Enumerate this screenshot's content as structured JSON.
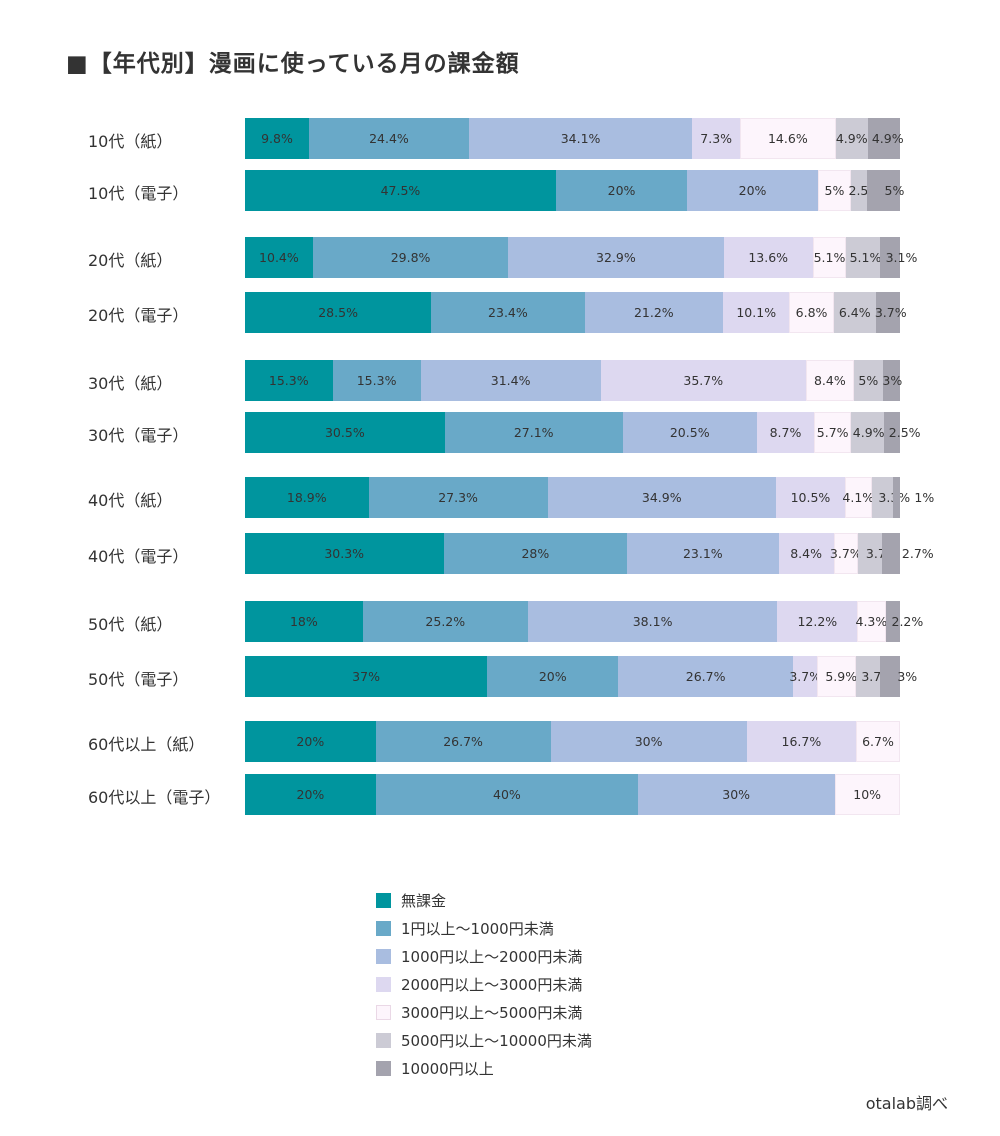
{
  "title": "■【年代別】漫画に使っている月の課金額",
  "source": "otalab調べ",
  "chart_data": {
    "type": "bar",
    "orientation": "horizontal-stacked-100",
    "title": "■【年代別】漫画に使っている月の課金額",
    "legend_position": "bottom",
    "categories": [
      "10代（紙）",
      "10代（電子）",
      "20代（紙）",
      "20代（電子）",
      "30代（紙）",
      "30代（電子）",
      "40代（紙）",
      "40代（電子）",
      "50代（紙）",
      "50代（電子）",
      "60代以上（紙）",
      "60代以上（電子）"
    ],
    "series": [
      {
        "name": "無課金",
        "color": "#00959e",
        "values": [
          9.8,
          47.5,
          10.4,
          28.5,
          15.3,
          30.5,
          18.9,
          30.3,
          18,
          37,
          20,
          20
        ]
      },
      {
        "name": "1円以上〜1000円未満",
        "color": "#69a9c8",
        "values": [
          24.4,
          20,
          29.8,
          23.4,
          15.3,
          27.1,
          27.3,
          28,
          25.2,
          20,
          26.7,
          40
        ]
      },
      {
        "name": "1000円以上〜2000円未満",
        "color": "#a9bde0",
        "values": [
          34.1,
          20,
          32.9,
          21.2,
          31.4,
          20.5,
          34.9,
          23.1,
          38.1,
          26.7,
          30,
          30
        ]
      },
      {
        "name": "2000円以上〜3000円未満",
        "color": "#ddd8f0",
        "values": [
          7.3,
          null,
          13.6,
          10.1,
          35.7,
          8.7,
          10.5,
          8.4,
          12.2,
          3.7,
          16.7,
          null
        ]
      },
      {
        "name": "3000円以上〜5000円未満",
        "color": "#fdf5fc",
        "values": [
          14.6,
          5,
          5.1,
          6.8,
          8.4,
          5.7,
          4.1,
          3.7,
          4.3,
          5.9,
          6.7,
          10
        ]
      },
      {
        "name": "5000円以上〜10000円未満",
        "color": "#cccbd5",
        "values": [
          4.9,
          2.5,
          5.1,
          6.4,
          5,
          4.9,
          3.3,
          3.7,
          null,
          3.7,
          null,
          null
        ]
      },
      {
        "name": "10000円以上",
        "color": "#a4a3ae",
        "values": [
          4.9,
          5,
          3.1,
          3.7,
          3,
          2.5,
          1,
          2.7,
          2.2,
          3,
          null,
          null
        ]
      }
    ]
  }
}
